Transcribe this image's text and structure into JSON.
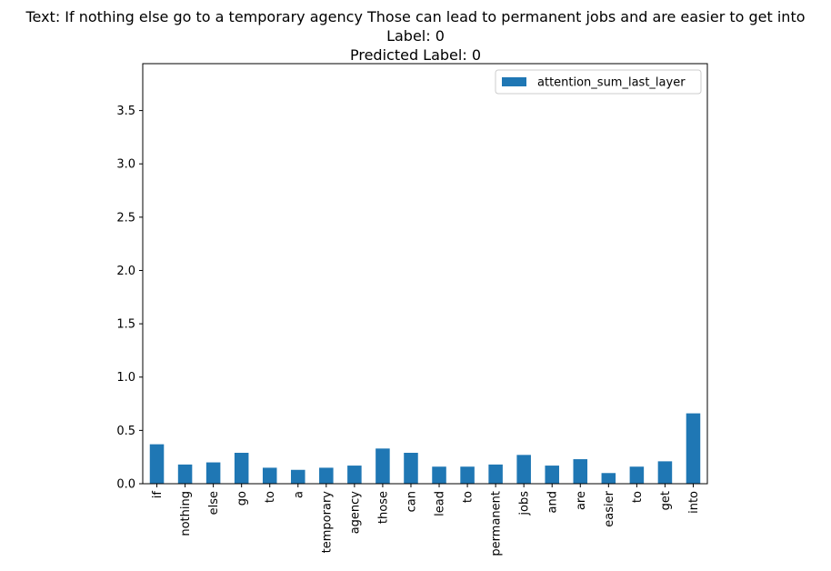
{
  "chart_data": {
    "type": "bar",
    "title_lines": [
      "Text: If nothing else go to a temporary agency Those can lead to permanent jobs and are easier to get into",
      "Label: 0",
      "Predicted Label: 0"
    ],
    "xlabel": "",
    "ylabel": "",
    "categories": [
      "if",
      "nothing",
      "else",
      "go",
      "to",
      "a",
      "temporary",
      "agency",
      "those",
      "can",
      "lead",
      "to",
      "permanent",
      "jobs",
      "and",
      "are",
      "easier",
      "to",
      "get",
      "into"
    ],
    "series": [
      {
        "name": "attention_sum_last_layer",
        "color": "#1f77b4",
        "values": [
          0.37,
          0.18,
          0.2,
          0.29,
          0.15,
          0.13,
          0.15,
          0.17,
          0.33,
          0.29,
          0.16,
          0.16,
          0.18,
          0.27,
          0.17,
          0.23,
          0.1,
          0.16,
          0.21,
          0.66
        ]
      }
    ],
    "ylim": [
      0,
      3.94
    ],
    "yticks": [
      0.0,
      0.5,
      1.0,
      1.5,
      2.0,
      2.5,
      3.0,
      3.5
    ],
    "ytick_labels": [
      "0.0",
      "0.5",
      "1.0",
      "1.5",
      "2.0",
      "2.5",
      "3.0",
      "3.5"
    ],
    "grid": false,
    "legend_position": "top-right"
  }
}
